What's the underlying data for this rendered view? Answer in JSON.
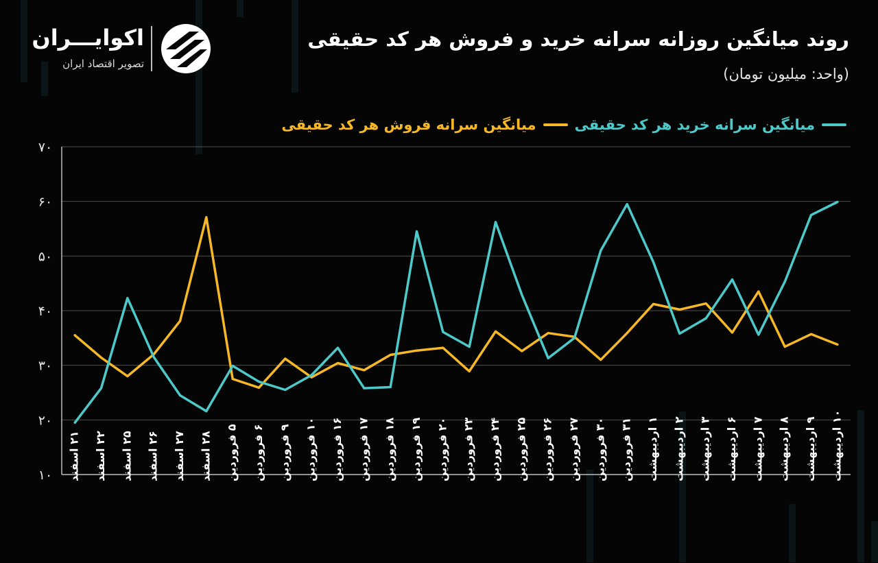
{
  "title": "روند میانگین روزانه سرانه خرید و فروش هر کد حقیقی",
  "subtitle": "(واحد: میلیون تومان)",
  "logo": {
    "name": "اکوایـــران",
    "tagline": "تصویر اقتصاد ایران",
    "icon": "ecoiran-logo-mark"
  },
  "colors": {
    "buy": "#4ec9c9",
    "sell": "#f6b826",
    "background": "#050505",
    "grid": "#8a8a8a"
  },
  "chart_data": {
    "type": "line",
    "title": "روند میانگین روزانه سرانه خرید و فروش هر کد حقیقی",
    "ylabel": "",
    "xlabel": "",
    "ylim": [
      10,
      70
    ],
    "yticks": [
      "۱۰",
      "۲۰",
      "۳۰",
      "۴۰",
      "۵۰",
      "۶۰",
      "۷۰"
    ],
    "ytick_values": [
      10,
      20,
      30,
      40,
      50,
      60,
      70
    ],
    "grid": true,
    "legend_position": "top-right",
    "categories": [
      "۲۱ اسفند",
      "۲۲ اسفند",
      "۲۵ اسفند",
      "۲۶ اسفند",
      "۲۷ اسفند",
      "۲۸ اسفند",
      "۵ فروردین",
      "۶ فروردین",
      "۹ فروردین",
      "۱۰ فروردین",
      "۱۶ فروردین",
      "۱۷ فروردین",
      "۱۸ فروردین",
      "۱۹ فروردین",
      "۲۰ فروردین",
      "۲۳ فروردین",
      "۲۴ فروردین",
      "۲۵ فروردین",
      "۲۶ فروردین",
      "۲۷ فروردین",
      "۳۰ فروردین",
      "۳۱ فروردین",
      "۱ اردیبهشت",
      "۲ اردیبهشت",
      "۳ اردیبهشت",
      "۶ اردیبهشت",
      "۷ اردیبهشت",
      "۸ اردیبهشت",
      "۹ اردیبهشت",
      "۱۰ اردیبهشت"
    ],
    "series": [
      {
        "name": "میانگین سرانه خرید هر کد حقیقی",
        "color": "#4ec9c9",
        "values": [
          19.5,
          25.8,
          42.3,
          31.5,
          24.5,
          21.6,
          29.9,
          27.0,
          25.5,
          28.2,
          33.2,
          25.8,
          26.0,
          54.5,
          36.1,
          33.4,
          56.2,
          42.9,
          31.3,
          35.0,
          51.0,
          59.5,
          48.9,
          35.8,
          38.6,
          45.7,
          35.6,
          45.3,
          57.5,
          59.9
        ]
      },
      {
        "name": "میانگین سرانه فروش هر کد حقیقی",
        "color": "#f6b826",
        "values": [
          35.5,
          31.4,
          28.0,
          32.0,
          38.1,
          57.1,
          27.5,
          25.9,
          31.2,
          27.8,
          30.4,
          29.1,
          31.9,
          32.7,
          33.2,
          28.9,
          36.2,
          32.6,
          35.9,
          35.2,
          31.0,
          35.9,
          41.2,
          40.2,
          41.3,
          36.0,
          43.5,
          33.4,
          35.7,
          33.8
        ]
      }
    ]
  }
}
